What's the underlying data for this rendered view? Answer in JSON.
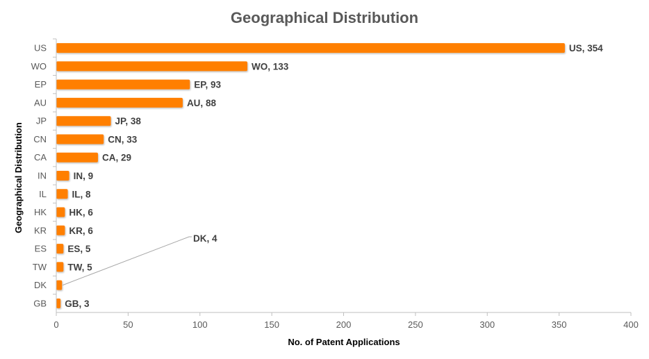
{
  "chart_data": {
    "type": "bar",
    "orientation": "horizontal",
    "title": "Geographical Distribution",
    "xlabel": "No. of Patent Applications",
    "ylabel": "Geographical Distribution",
    "categories": [
      "US",
      "WO",
      "EP",
      "AU",
      "JP",
      "CN",
      "CA",
      "IN",
      "IL",
      "HK",
      "KR",
      "ES",
      "TW",
      "DK",
      "GB"
    ],
    "values": [
      354,
      133,
      93,
      88,
      38,
      33,
      29,
      9,
      8,
      6,
      6,
      5,
      5,
      4,
      3
    ],
    "data_labels": [
      "US, 354",
      "WO, 133",
      "EP, 93",
      "AU, 88",
      "JP, 38",
      "CN, 33",
      "CA, 29",
      "IN, 9",
      "IL, 8",
      "HK, 6",
      "KR, 6",
      "ES, 5",
      "TW, 5",
      "DK, 4",
      "GB, 3"
    ],
    "xlim": [
      0,
      400
    ],
    "xticks": [
      0,
      50,
      100,
      150,
      200,
      250,
      300,
      350,
      400
    ],
    "grid": false,
    "legend": "none",
    "bar_color": "#FF7F00",
    "callout_category": "DK"
  }
}
